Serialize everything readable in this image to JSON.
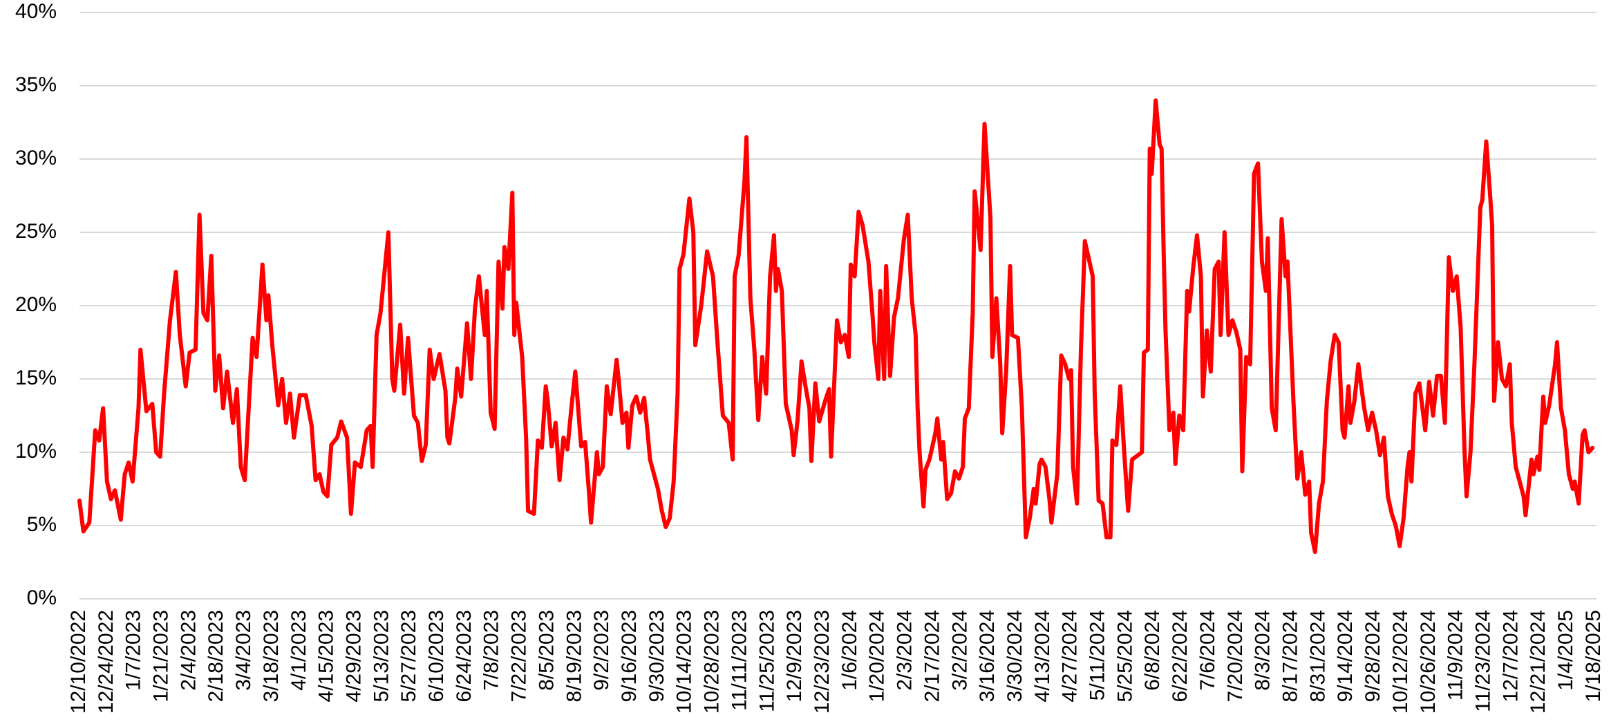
{
  "chart_data": {
    "type": "line",
    "color": "#ff0000",
    "grid": true,
    "xlim": [
      "12/10/2022",
      "1/18/2025"
    ],
    "xticks": [
      "12/10/2022",
      "12/24/2022",
      "1/7/2023",
      "1/21/2023",
      "2/4/2023",
      "2/18/2023",
      "3/4/2023",
      "3/18/2023",
      "4/1/2023",
      "4/15/2023",
      "4/29/2023",
      "5/13/2023",
      "5/27/2023",
      "6/10/2023",
      "6/24/2023",
      "7/8/2023",
      "7/22/2023",
      "8/5/2023",
      "8/19/2023",
      "9/2/2023",
      "9/16/2023",
      "9/30/2023",
      "10/14/2023",
      "10/28/2023",
      "11/11/2023",
      "11/25/2023",
      "12/9/2023",
      "12/23/2023",
      "1/6/2024",
      "1/20/2024",
      "2/3/2024",
      "2/17/2024",
      "3/2/2024",
      "3/16/2024",
      "3/30/2024",
      "4/13/2024",
      "4/27/2024",
      "5/11/2024",
      "5/25/2024",
      "6/8/2024",
      "6/22/2024",
      "7/6/2024",
      "7/20/2024",
      "8/3/2024",
      "8/17/2024",
      "8/31/2024",
      "9/14/2024",
      "9/28/2024",
      "10/12/2024",
      "10/26/2024",
      "11/9/2024",
      "11/23/2024",
      "12/7/2024",
      "12/21/2024",
      "1/4/2025",
      "1/18/2025"
    ],
    "ylim": [
      0,
      40
    ],
    "yticks": [
      {
        "value": 0,
        "label": "0%"
      },
      {
        "value": 5,
        "label": "5%"
      },
      {
        "value": 10,
        "label": "10%"
      },
      {
        "value": 15,
        "label": "15%"
      },
      {
        "value": 20,
        "label": "20%"
      },
      {
        "value": 25,
        "label": "25%"
      },
      {
        "value": 30,
        "label": "30%"
      },
      {
        "value": 35,
        "label": "35%"
      },
      {
        "value": 40,
        "label": "40%"
      }
    ],
    "x": [
      "12/10/2022",
      "12/12/2022",
      "12/15/2022",
      "12/18/2022",
      "12/20/2022",
      "12/22/2022",
      "12/24/2022",
      "12/26/2022",
      "12/28/2022",
      "12/31/2022",
      "1/2/2023",
      "1/4/2023",
      "1/6/2023",
      "1/9/2023",
      "1/10/2023",
      "1/13/2023",
      "1/16/2023",
      "1/18/2023",
      "1/20/2023",
      "1/22/2023",
      "1/25/2023",
      "1/28/2023",
      "1/30/2023",
      "2/2/2023",
      "2/4/2023",
      "2/7/2023",
      "2/9/2023",
      "2/11/2023",
      "2/13/2023",
      "2/15/2023",
      "2/17/2023",
      "2/19/2023",
      "2/21/2023",
      "2/23/2023",
      "2/26/2023",
      "2/28/2023",
      "3/2/2023",
      "3/4/2023",
      "3/6/2023",
      "3/8/2023",
      "3/10/2023",
      "3/13/2023",
      "3/15/2023",
      "3/16/2023",
      "3/18/2023",
      "3/21/2023",
      "3/23/2023",
      "3/25/2023",
      "3/27/2023",
      "3/29/2023",
      "4/1/2023",
      "4/4/2023",
      "4/7/2023",
      "4/9/2023",
      "4/11/2023",
      "4/13/2023",
      "4/15/2023",
      "4/17/2023",
      "4/20/2023",
      "4/22/2023",
      "4/25/2023",
      "4/27/2023",
      "4/29/2023",
      "5/2/2023",
      "5/5/2023",
      "5/7/2023",
      "5/8/2023",
      "5/10/2023",
      "5/12/2023",
      "5/16/2023",
      "5/18/2023",
      "5/19/2023",
      "5/22/2023",
      "5/24/2023",
      "5/26/2023",
      "5/29/2023",
      "5/31/2023",
      "6/2/2023",
      "6/4/2023",
      "6/6/2023",
      "6/8/2023",
      "6/11/2023",
      "6/14/2023",
      "6/15/2023",
      "6/16/2023",
      "6/19/2023",
      "6/20/2023",
      "6/22/2023",
      "6/25/2023",
      "6/27/2023",
      "6/29/2023",
      "7/1/2023",
      "7/4/2023",
      "7/5/2023",
      "7/7/2023",
      "7/9/2023",
      "7/11/2023",
      "7/13/2023",
      "7/14/2023",
      "7/16/2023",
      "7/18/2023",
      "7/19/2023",
      "7/20/2023",
      "7/23/2023",
      "7/25/2023",
      "7/26/2023",
      "7/29/2023",
      "7/31/2023",
      "8/2/2023",
      "8/4/2023",
      "8/5/2023",
      "8/7/2023",
      "8/9/2023",
      "8/11/2023",
      "8/13/2023",
      "8/15/2023",
      "8/17/2023",
      "8/19/2023",
      "8/22/2023",
      "8/24/2023",
      "8/26/2023",
      "8/27/2023",
      "8/30/2023",
      "8/31/2023",
      "9/2/2023",
      "9/4/2023",
      "9/6/2023",
      "9/9/2023",
      "9/10/2023",
      "9/12/2023",
      "9/14/2023",
      "9/15/2023",
      "9/17/2023",
      "9/19/2023",
      "9/21/2023",
      "9/23/2023",
      "9/25/2023",
      "9/26/2023",
      "9/28/2023",
      "9/30/2023",
      "10/2/2023",
      "10/4/2023",
      "10/6/2023",
      "10/8/2023",
      "10/10/2023",
      "10/11/2023",
      "10/13/2023",
      "10/16/2023",
      "10/18/2023",
      "10/19/2023",
      "10/22/2023",
      "10/25/2023",
      "10/28/2023",
      "10/30/2023",
      "11/2/2023",
      "11/5/2023",
      "11/7/2023",
      "11/8/2023",
      "11/10/2023",
      "11/13/2023",
      "11/14/2023",
      "11/16/2023",
      "11/18/2023",
      "11/20/2023",
      "11/22/2023",
      "11/24/2023",
      "11/26/2023",
      "11/28/2023",
      "11/29/2023",
      "11/30/2023",
      "12/2/2023",
      "12/4/2023",
      "12/7/2023",
      "12/8/2023",
      "12/10/2023",
      "12/12/2023",
      "12/14/2023",
      "12/16/2023",
      "12/17/2023",
      "12/19/2023",
      "12/21/2023",
      "12/24/2023",
      "12/26/2023",
      "12/27/2023",
      "12/30/2023",
      "1/1/2024",
      "1/3/2024",
      "1/5/2024",
      "1/6/2024",
      "1/8/2024",
      "1/10/2024",
      "1/12/2024",
      "1/15/2024",
      "1/17/2024",
      "1/18/2024",
      "1/20/2024",
      "1/21/2024",
      "1/23/2024",
      "1/24/2024",
      "1/26/2024",
      "1/28/2024",
      "1/30/2024",
      "2/2/2024",
      "2/4/2024",
      "2/6/2024",
      "2/8/2024",
      "2/9/2024",
      "2/10/2024",
      "2/12/2024",
      "2/13/2024",
      "2/15/2024",
      "2/18/2024",
      "2/19/2024",
      "2/21/2024",
      "2/22/2024",
      "2/24/2024",
      "2/26/2024",
      "2/28/2024",
      "3/1/2024",
      "3/3/2024",
      "3/4/2024",
      "3/6/2024",
      "3/8/2024",
      "3/9/2024",
      "3/12/2024",
      "3/14/2024",
      "3/17/2024",
      "3/18/2024",
      "3/20/2024",
      "3/22/2024",
      "3/23/2024",
      "3/25/2024",
      "3/27/2024",
      "3/28/2024",
      "3/31/2024",
      "4/2/2024",
      "4/4/2024",
      "4/6/2024",
      "4/8/2024",
      "4/9/2024",
      "4/11/2024",
      "4/12/2024",
      "4/14/2024",
      "4/16/2024",
      "4/17/2024",
      "4/20/2024",
      "4/22/2024",
      "4/24/2024",
      "4/26/2024",
      "4/27/2024",
      "4/28/2024",
      "4/30/2024",
      "5/2/2024",
      "5/4/2024",
      "5/6/2024",
      "5/8/2024",
      "5/9/2024",
      "5/11/2024",
      "5/13/2024",
      "5/15/2024",
      "5/17/2024",
      "5/18/2024",
      "5/20/2024",
      "5/22/2024",
      "5/24/2024",
      "5/26/2024",
      "5/28/2024",
      "5/31/2024",
      "6/2/2024",
      "6/3/2024",
      "6/5/2024",
      "6/6/2024",
      "6/7/2024",
      "6/9/2024",
      "6/11/2024",
      "6/12/2024",
      "6/13/2024",
      "6/14/2024",
      "6/16/2024",
      "6/18/2024",
      "6/19/2024",
      "6/21/2024",
      "6/23/2024",
      "6/25/2024",
      "6/26/2024",
      "6/28/2024",
      "6/30/2024",
      "7/2/2024",
      "7/3/2024",
      "7/5/2024",
      "7/7/2024",
      "7/9/2024",
      "7/11/2024",
      "7/12/2024",
      "7/14/2024",
      "7/16/2024",
      "7/18/2024",
      "7/20/2024",
      "7/22/2024",
      "7/23/2024",
      "7/25/2024",
      "7/27/2024",
      "7/29/2024",
      "7/31/2024",
      "8/2/2024",
      "8/4/2024",
      "8/5/2024",
      "8/7/2024",
      "8/9/2024",
      "8/12/2024",
      "8/14/2024",
      "8/15/2024",
      "8/18/2024",
      "8/20/2024",
      "8/22/2024",
      "8/24/2024",
      "8/26/2024",
      "8/27/2024",
      "8/29/2024",
      "8/31/2024",
      "9/2/2024",
      "9/4/2024",
      "9/6/2024",
      "9/8/2024",
      "9/10/2024",
      "9/12/2024",
      "9/13/2024",
      "9/15/2024",
      "9/16/2024",
      "9/18/2024",
      "9/20/2024",
      "9/23/2024",
      "9/25/2024",
      "9/27/2024",
      "9/29/2024",
      "10/1/2024",
      "10/3/2024",
      "10/5/2024",
      "10/7/2024",
      "10/9/2024",
      "10/11/2024",
      "10/13/2024",
      "10/15/2024",
      "10/16/2024",
      "10/17/2024",
      "10/19/2024",
      "10/21/2024",
      "10/24/2024",
      "10/26/2024",
      "10/28/2024",
      "10/30/2024",
      "11/1/2024",
      "11/3/2024",
      "11/5/2024",
      "11/7/2024",
      "11/9/2024",
      "11/11/2024",
      "11/13/2024",
      "11/14/2024",
      "11/16/2024",
      "11/18/2024",
      "11/21/2024",
      "11/22/2024",
      "11/24/2024",
      "11/26/2024",
      "11/27/2024",
      "11/28/2024",
      "11/30/2024",
      "12/2/2024",
      "12/4/2024",
      "12/6/2024",
      "12/7/2024",
      "12/9/2024",
      "12/11/2024",
      "12/13/2024",
      "12/14/2024",
      "12/17/2024",
      "12/18/2024",
      "12/20/2024",
      "12/21/2024",
      "12/23/2024",
      "12/24/2024",
      "12/26/2024",
      "12/29/2024",
      "12/30/2024",
      "1/1/2025",
      "1/3/2025",
      "1/5/2025",
      "1/7/2025",
      "1/8/2025",
      "1/10/2025",
      "1/12/2025",
      "1/13/2025",
      "1/15/2025",
      "1/17/2025"
    ],
    "values": [
      6.7,
      4.6,
      5.2,
      11.5,
      10.8,
      13.0,
      8,
      6.8,
      7.4,
      5.4,
      8.5,
      9.3,
      8.0,
      13,
      17,
      12.8,
      13.3,
      10,
      9.7,
      14,
      19,
      22.3,
      18,
      14.5,
      16.8,
      17,
      26.2,
      19.5,
      19,
      23.4,
      14.2,
      16.6,
      13,
      15.5,
      12,
      14.3,
      9,
      8.1,
      13,
      17.8,
      16.5,
      22.8,
      19,
      20.7,
      17.3,
      13.2,
      15,
      12,
      14,
      11,
      13.9,
      13.9,
      11.8,
      8.1,
      8.5,
      7.3,
      7.0,
      10.5,
      11,
      12.1,
      11,
      5.8,
      9.3,
      9,
      11.5,
      11.8,
      9,
      18,
      19.5,
      25,
      15,
      14.2,
      18.7,
      14,
      17.8,
      12.5,
      12,
      9.4,
      10.5,
      17,
      15,
      16.7,
      14.2,
      11,
      10.6,
      13.7,
      15.7,
      13.8,
      18.8,
      15,
      19.8,
      22,
      18,
      21,
      12.7,
      11.6,
      23,
      19.8,
      24,
      22.5,
      27.7,
      18,
      20.2,
      16.5,
      11,
      6,
      5.8,
      10.8,
      10.3,
      14.5,
      13.5,
      10.4,
      12,
      8.1,
      11,
      10.2,
      13,
      15.5,
      10.4,
      10.7,
      7.2,
      5.2,
      10,
      8.5,
      9,
      14.5,
      12.6,
      16.3,
      15,
      12,
      12.7,
      10.3,
      13.2,
      13.8,
      12.7,
      13.7,
      11,
      9.5,
      8.5,
      7.5,
      6,
      4.9,
      5.5,
      8,
      14,
      22.5,
      23.5,
      27.3,
      25,
      17.3,
      20,
      23.7,
      22,
      18,
      12.5,
      12,
      9.5,
      22,
      23.4,
      28.5,
      31.5,
      20.5,
      17,
      12.2,
      16.5,
      14,
      22,
      24.8,
      21,
      22.5,
      21,
      13.3,
      11.5,
      9.8,
      12.2,
      16.2,
      14.5,
      13,
      9.4,
      14.7,
      12.1,
      13.5,
      14.3,
      9.7,
      19,
      17.5,
      18,
      16.5,
      22.8,
      22,
      26.4,
      25.5,
      23,
      19.5,
      17.5,
      15,
      21,
      15,
      22.7,
      15.2,
      19.2,
      20.5,
      24.5,
      26.2,
      20.5,
      18,
      13,
      10,
      6.3,
      8.8,
      9.5,
      11.3,
      12.3,
      9.5,
      10.7,
      6.8,
      7.2,
      8.7,
      8.2,
      9,
      12.3,
      13,
      19.5,
      27.8,
      23.8,
      32.4,
      26,
      16.5,
      20.5,
      16,
      11.3,
      15.5,
      22.7,
      18,
      17.8,
      13,
      4.2,
      5.5,
      7.5,
      6.5,
      9.2,
      9.5,
      9,
      6.8,
      5.2,
      8.5,
      16.6,
      16,
      15,
      15.6,
      9,
      6.5,
      17,
      24.4,
      23.2,
      22,
      14,
      6.7,
      6.5,
      4.2,
      4.2,
      10.8,
      10.5,
      14.5,
      10,
      6,
      9.5,
      9.8,
      10,
      16.8,
      17,
      30.7,
      29,
      34,
      31,
      30.7,
      24,
      18.3,
      11.5,
      12.7,
      9.2,
      12.5,
      11.5,
      21,
      19.6,
      22.5,
      24.8,
      22,
      13.8,
      18.3,
      15.5,
      22.5,
      23,
      18,
      25,
      18,
      19,
      18.2,
      17,
      8.7,
      16.5,
      16,
      29,
      29.7,
      23,
      21,
      24.6,
      13,
      11.5,
      25.9,
      22,
      23,
      13.5,
      8.2,
      10,
      7.1,
      8,
      4.5,
      3.2,
      6.5,
      8,
      13.5,
      16.3,
      18,
      17.5,
      11.5,
      11,
      14.5,
      12,
      13.5,
      16,
      13,
      11.5,
      12.7,
      11.5,
      9.8,
      11,
      7,
      5.8,
      5,
      3.6,
      5.5,
      9,
      10,
      8,
      14,
      14.7,
      11.5,
      14.8,
      12.5,
      15.2,
      15.2,
      12,
      23.3,
      21,
      22,
      18.5,
      10,
      7,
      10,
      16,
      26.7,
      27.2,
      31.2,
      27.5,
      25.5,
      13.5,
      17.5,
      15,
      14.5,
      16,
      12,
      9,
      8,
      7,
      5.7,
      9.5,
      8.5,
      9.7,
      8.8,
      13.8,
      12,
      13.2,
      16,
      17.5,
      13,
      11.5,
      8.5,
      7.5,
      8,
      6.5,
      11.2,
      11.5,
      10,
      10.3
    ]
  }
}
